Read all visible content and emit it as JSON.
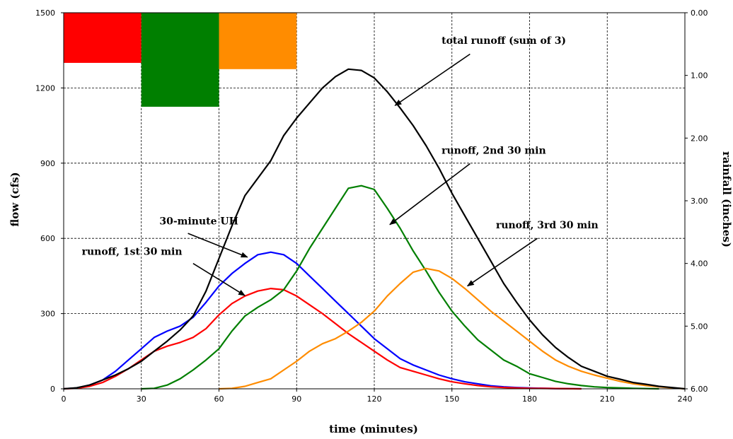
{
  "chart_data": {
    "type": "line",
    "xlabel": "time (minutes)",
    "ylabel": "flow (cfs)",
    "y2label": "rainfall (inches)",
    "xlim": [
      0,
      240
    ],
    "ylim": [
      0,
      1500
    ],
    "y2lim": [
      0,
      6
    ],
    "y2_inverted": true,
    "grid": true,
    "x_ticks": [
      0,
      30,
      60,
      90,
      120,
      150,
      180,
      210,
      240
    ],
    "y_ticks": [
      0,
      300,
      600,
      900,
      1200,
      1500
    ],
    "y2_ticks": [
      "0.00",
      "1.00",
      "2.00",
      "3.00",
      "4.00",
      "5.00",
      "6.00"
    ],
    "rainfall_bars": [
      {
        "x0": 0,
        "x1": 30,
        "depth": 0.8,
        "color": "#ff0000"
      },
      {
        "x0": 30,
        "x1": 60,
        "depth": 1.5,
        "color": "#007f00"
      },
      {
        "x0": 60,
        "x1": 90,
        "depth": 0.9,
        "color": "#ff8c00"
      }
    ],
    "series": [
      {
        "color": "#0000ff",
        "points": [
          [
            0,
            0
          ],
          [
            5,
            3
          ],
          [
            10,
            15
          ],
          [
            15,
            35
          ],
          [
            20,
            70
          ],
          [
            25,
            115
          ],
          [
            30,
            160
          ],
          [
            35,
            205
          ],
          [
            40,
            230
          ],
          [
            45,
            250
          ],
          [
            50,
            285
          ],
          [
            55,
            345
          ],
          [
            60,
            410
          ],
          [
            65,
            460
          ],
          [
            70,
            500
          ],
          [
            75,
            535
          ],
          [
            80,
            545
          ],
          [
            85,
            535
          ],
          [
            90,
            500
          ],
          [
            95,
            450
          ],
          [
            100,
            400
          ],
          [
            105,
            350
          ],
          [
            110,
            300
          ],
          [
            115,
            250
          ],
          [
            120,
            200
          ],
          [
            125,
            160
          ],
          [
            130,
            120
          ],
          [
            135,
            95
          ],
          [
            140,
            75
          ],
          [
            145,
            55
          ],
          [
            150,
            40
          ],
          [
            155,
            28
          ],
          [
            160,
            20
          ],
          [
            165,
            12
          ],
          [
            170,
            8
          ],
          [
            175,
            5
          ],
          [
            180,
            3
          ],
          [
            190,
            1
          ],
          [
            200,
            0
          ]
        ]
      },
      {
        "color": "#ff0000",
        "points": [
          [
            0,
            0
          ],
          [
            5,
            2
          ],
          [
            10,
            10
          ],
          [
            15,
            25
          ],
          [
            20,
            50
          ],
          [
            25,
            80
          ],
          [
            30,
            115
          ],
          [
            35,
            150
          ],
          [
            40,
            170
          ],
          [
            45,
            185
          ],
          [
            50,
            205
          ],
          [
            55,
            240
          ],
          [
            60,
            295
          ],
          [
            65,
            340
          ],
          [
            70,
            370
          ],
          [
            75,
            390
          ],
          [
            80,
            400
          ],
          [
            85,
            395
          ],
          [
            90,
            370
          ],
          [
            95,
            335
          ],
          [
            100,
            300
          ],
          [
            105,
            260
          ],
          [
            110,
            220
          ],
          [
            115,
            185
          ],
          [
            120,
            150
          ],
          [
            125,
            115
          ],
          [
            130,
            85
          ],
          [
            135,
            70
          ],
          [
            140,
            55
          ],
          [
            145,
            40
          ],
          [
            150,
            28
          ],
          [
            155,
            20
          ],
          [
            160,
            13
          ],
          [
            165,
            8
          ],
          [
            170,
            5
          ],
          [
            175,
            3
          ],
          [
            180,
            2
          ],
          [
            190,
            1
          ],
          [
            200,
            0
          ]
        ]
      },
      {
        "color": "#007f00",
        "points": [
          [
            30,
            0
          ],
          [
            35,
            2
          ],
          [
            40,
            15
          ],
          [
            45,
            40
          ],
          [
            50,
            75
          ],
          [
            55,
            115
          ],
          [
            60,
            160
          ],
          [
            65,
            230
          ],
          [
            70,
            290
          ],
          [
            75,
            325
          ],
          [
            80,
            355
          ],
          [
            85,
            395
          ],
          [
            90,
            470
          ],
          [
            95,
            560
          ],
          [
            100,
            640
          ],
          [
            105,
            720
          ],
          [
            110,
            800
          ],
          [
            115,
            810
          ],
          [
            120,
            795
          ],
          [
            125,
            720
          ],
          [
            130,
            640
          ],
          [
            135,
            550
          ],
          [
            140,
            470
          ],
          [
            145,
            385
          ],
          [
            150,
            310
          ],
          [
            155,
            250
          ],
          [
            160,
            195
          ],
          [
            165,
            155
          ],
          [
            170,
            115
          ],
          [
            175,
            90
          ],
          [
            180,
            60
          ],
          [
            185,
            45
          ],
          [
            190,
            30
          ],
          [
            195,
            20
          ],
          [
            200,
            13
          ],
          [
            205,
            8
          ],
          [
            210,
            5
          ],
          [
            220,
            2
          ],
          [
            230,
            0
          ]
        ]
      },
      {
        "color": "#ff8c00",
        "points": [
          [
            60,
            0
          ],
          [
            65,
            2
          ],
          [
            70,
            10
          ],
          [
            75,
            25
          ],
          [
            80,
            40
          ],
          [
            85,
            75
          ],
          [
            90,
            110
          ],
          [
            95,
            150
          ],
          [
            100,
            180
          ],
          [
            105,
            200
          ],
          [
            110,
            230
          ],
          [
            115,
            265
          ],
          [
            120,
            310
          ],
          [
            125,
            370
          ],
          [
            130,
            420
          ],
          [
            135,
            465
          ],
          [
            140,
            480
          ],
          [
            145,
            470
          ],
          [
            150,
            440
          ],
          [
            155,
            400
          ],
          [
            160,
            355
          ],
          [
            165,
            310
          ],
          [
            170,
            270
          ],
          [
            175,
            230
          ],
          [
            180,
            190
          ],
          [
            185,
            150
          ],
          [
            190,
            115
          ],
          [
            195,
            90
          ],
          [
            200,
            70
          ],
          [
            205,
            55
          ],
          [
            210,
            42
          ],
          [
            215,
            30
          ],
          [
            220,
            20
          ],
          [
            225,
            13
          ],
          [
            230,
            8
          ],
          [
            235,
            4
          ],
          [
            240,
            0
          ]
        ]
      },
      {
        "color": "#000000",
        "points": [
          [
            0,
            0
          ],
          [
            5,
            4
          ],
          [
            10,
            15
          ],
          [
            15,
            35
          ],
          [
            20,
            55
          ],
          [
            25,
            80
          ],
          [
            30,
            110
          ],
          [
            35,
            150
          ],
          [
            40,
            190
          ],
          [
            45,
            235
          ],
          [
            50,
            290
          ],
          [
            55,
            390
          ],
          [
            60,
            520
          ],
          [
            65,
            650
          ],
          [
            70,
            770
          ],
          [
            75,
            840
          ],
          [
            80,
            910
          ],
          [
            85,
            1010
          ],
          [
            90,
            1080
          ],
          [
            95,
            1140
          ],
          [
            100,
            1200
          ],
          [
            105,
            1245
          ],
          [
            110,
            1275
          ],
          [
            115,
            1270
          ],
          [
            120,
            1240
          ],
          [
            125,
            1185
          ],
          [
            130,
            1120
          ],
          [
            135,
            1050
          ],
          [
            140,
            970
          ],
          [
            145,
            880
          ],
          [
            150,
            780
          ],
          [
            155,
            690
          ],
          [
            160,
            600
          ],
          [
            165,
            510
          ],
          [
            170,
            420
          ],
          [
            175,
            345
          ],
          [
            180,
            275
          ],
          [
            185,
            215
          ],
          [
            190,
            165
          ],
          [
            195,
            125
          ],
          [
            200,
            90
          ],
          [
            205,
            70
          ],
          [
            210,
            50
          ],
          [
            215,
            38
          ],
          [
            220,
            25
          ],
          [
            225,
            18
          ],
          [
            230,
            10
          ],
          [
            235,
            5
          ],
          [
            240,
            0
          ]
        ]
      }
    ],
    "annotations": [
      {
        "text": "total runoff (sum of 3)",
        "tx": 146,
        "ty": 1376,
        "ax": 128,
        "ay": 1130,
        "lx": 157,
        "ly": 1335,
        "anchor": "start"
      },
      {
        "text": "runoff, 2nd 30 min",
        "tx": 146,
        "ty": 938,
        "ax": 126,
        "ay": 655,
        "lx": 157,
        "ly": 898,
        "anchor": "start"
      },
      {
        "text": "30-minute UH",
        "tx": 37,
        "ty": 655,
        "ax": 71,
        "ay": 525,
        "lx": 48,
        "ly": 620,
        "anchor": "start"
      },
      {
        "text": "runoff, 1st 30 min",
        "tx": 7,
        "ty": 535,
        "ax": 70,
        "ay": 372,
        "lx": 50,
        "ly": 500,
        "anchor": "start"
      },
      {
        "text": "runoff, 3rd 30 min",
        "tx": 167,
        "ty": 640,
        "ax": 156,
        "ay": 410,
        "lx": 183,
        "ly": 600,
        "anchor": "start"
      }
    ]
  }
}
